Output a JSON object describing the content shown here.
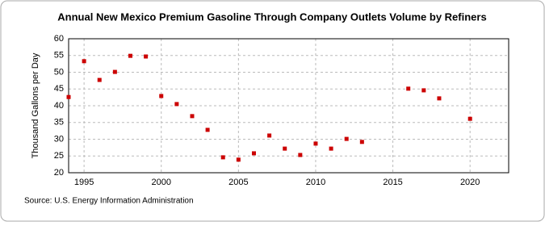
{
  "chart_data": {
    "type": "scatter",
    "title": "Annual New Mexico Premium Gasoline Through Company Outlets Volume by Refiners",
    "y_label": "Thousand Gallons per Day",
    "source": "Source: U.S. Energy Information Administration",
    "x": [
      1994,
      1995,
      1996,
      1997,
      1998,
      1999,
      2000,
      2001,
      2002,
      2003,
      2004,
      2005,
      2006,
      2007,
      2008,
      2009,
      2010,
      2011,
      2012,
      2013,
      2016,
      2017,
      2018,
      2020
    ],
    "values": [
      42.6,
      53.3,
      47.7,
      50.1,
      54.9,
      54.7,
      42.9,
      40.5,
      36.9,
      32.8,
      24.6,
      23.9,
      25.8,
      31.1,
      27.2,
      25.3,
      28.7,
      27.2,
      30.1,
      29.2,
      45.1,
      44.6,
      42.2,
      36.1
    ],
    "color": "#cc0000",
    "xlim": [
      1994,
      2022.5
    ],
    "xticks": [
      1995,
      2000,
      2005,
      2010,
      2015,
      2020
    ],
    "ylim": [
      20,
      60
    ],
    "yticks": [
      20,
      25,
      30,
      35,
      40,
      45,
      50,
      55,
      60
    ],
    "grid": true
  }
}
